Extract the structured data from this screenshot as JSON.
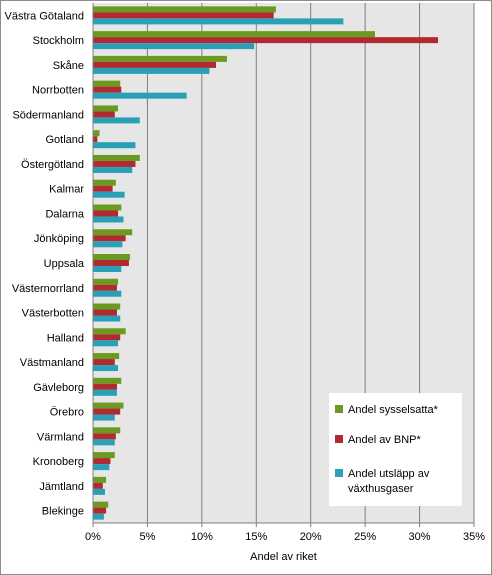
{
  "chart_data": {
    "type": "bar",
    "orientation": "horizontal",
    "categories": [
      "Västra Götaland",
      "Stockholm",
      "Skåne",
      "Norrbotten",
      "Södermanland",
      "Gotland",
      "Östergötland",
      "Kalmar",
      "Dalarna",
      "Jönköping",
      "Uppsala",
      "Västernorrland",
      "Västerbotten",
      "Halland",
      "Västmanland",
      "Gävleborg",
      "Örebro",
      "Värmland",
      "Kronoberg",
      "Jämtland",
      "Blekinge"
    ],
    "series": [
      {
        "name": "Andel sysselsatta*",
        "color": "#6a9a1f",
        "values": [
          16.8,
          25.9,
          12.3,
          2.5,
          2.3,
          0.6,
          4.3,
          2.1,
          2.6,
          3.6,
          3.4,
          2.3,
          2.5,
          3.0,
          2.4,
          2.6,
          2.8,
          2.5,
          2.0,
          1.2,
          1.4
        ]
      },
      {
        "name": "Andel av BNP*",
        "color": "#b02a30",
        "values": [
          16.6,
          31.7,
          11.3,
          2.6,
          2.0,
          0.4,
          3.9,
          1.8,
          2.3,
          3.0,
          3.3,
          2.2,
          2.2,
          2.5,
          2.0,
          2.2,
          2.5,
          2.1,
          1.6,
          0.9,
          1.2
        ]
      },
      {
        "name": "Andel utsläpp av växthusgaser",
        "color": "#2aa0b8",
        "values": [
          23.0,
          14.8,
          10.7,
          8.6,
          4.3,
          3.9,
          3.6,
          2.9,
          2.8,
          2.7,
          2.6,
          2.6,
          2.5,
          2.3,
          2.3,
          2.2,
          2.0,
          2.0,
          1.5,
          1.1,
          1.0
        ]
      }
    ],
    "xlim": [
      0,
      35
    ],
    "xticks": [
      "0%",
      "5%",
      "10%",
      "15%",
      "20%",
      "25%",
      "30%",
      "35%"
    ],
    "xtick_values": [
      0,
      5,
      10,
      15,
      20,
      25,
      30,
      35
    ],
    "xlabel": "Andel av riket",
    "ylabel": "",
    "title": "",
    "grid": "vertical",
    "legend": {
      "placement": "bottom-right",
      "lines": [
        [
          "Andel sysselsatta*"
        ],
        [
          "Andel av BNP*"
        ],
        [
          "Andel utsläpp av",
          "växthusgaser"
        ]
      ]
    },
    "plot_background": "#e6e6e6"
  }
}
